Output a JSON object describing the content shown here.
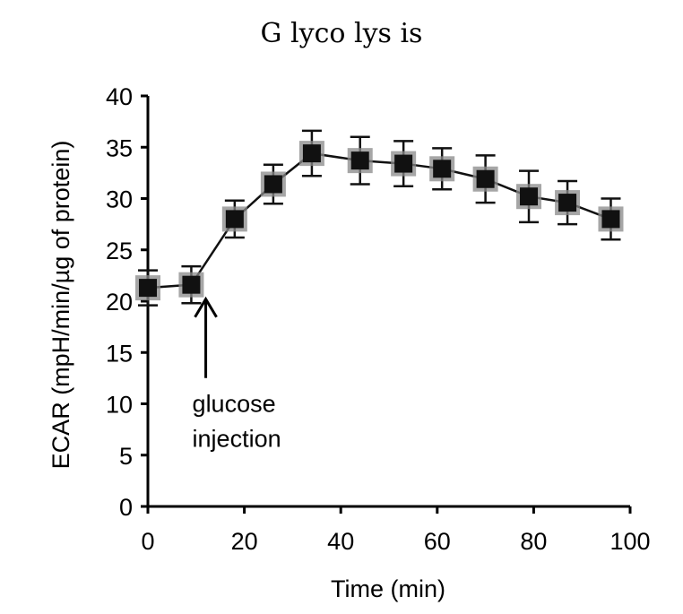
{
  "chart_data": {
    "type": "line",
    "title": "G lyco lys is",
    "xlabel": "Time (min)",
    "ylabel": "ECAR (mpH/min/µg of protein)",
    "xlim": [
      0,
      100
    ],
    "ylim": [
      0,
      40
    ],
    "xticks": [
      0,
      20,
      40,
      60,
      80,
      100
    ],
    "yticks": [
      0,
      5,
      10,
      15,
      20,
      25,
      30,
      35,
      40
    ],
    "grid": false,
    "legend": "none",
    "series": [
      {
        "x": [
          0,
          9,
          18,
          26,
          34,
          44,
          53,
          61,
          70,
          79,
          87,
          96
        ],
        "y": [
          21.3,
          21.6,
          28.0,
          31.4,
          34.4,
          33.7,
          33.4,
          32.9,
          31.9,
          30.2,
          29.6,
          28.0
        ],
        "err": [
          1.7,
          1.8,
          1.8,
          1.9,
          2.2,
          2.3,
          2.2,
          2.0,
          2.3,
          2.5,
          2.1,
          2.0
        ]
      }
    ],
    "annotations": [
      {
        "text_lines": [
          "glucose",
          "injection"
        ],
        "x": 12,
        "y": 20.2
      }
    ],
    "colors": {
      "series": "#111111",
      "marker_halo": "#888888",
      "axis": "#000000"
    }
  }
}
